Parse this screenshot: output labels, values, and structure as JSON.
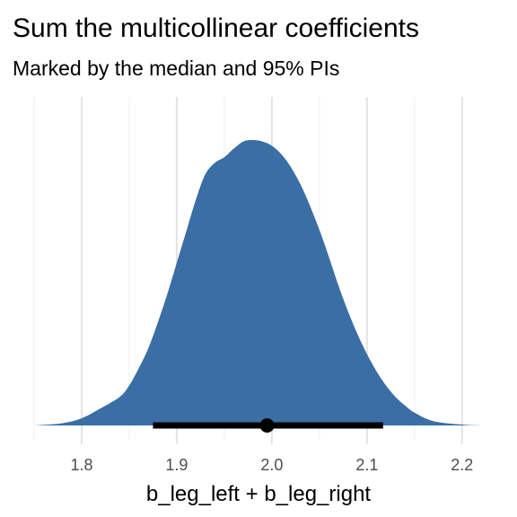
{
  "chart_data": {
    "type": "area",
    "title": "Sum the multicollinear coefficients",
    "subtitle": "Marked by the median and 95% PIs",
    "xlabel": "b_leg_left + b_leg_right",
    "ylabel": "",
    "xlim": [
      1.75,
      2.22
    ],
    "x_ticks": [
      1.8,
      1.9,
      2.0,
      2.1,
      2.2
    ],
    "x_tick_labels": [
      "1.8",
      "1.9",
      "2.0",
      "2.1",
      "2.2"
    ],
    "grid": "vertical",
    "density": {
      "x": [
        1.75,
        1.78,
        1.8,
        1.82,
        1.84,
        1.85,
        1.86,
        1.87,
        1.88,
        1.89,
        1.9,
        1.91,
        1.92,
        1.93,
        1.94,
        1.95,
        1.96,
        1.97,
        1.98,
        1.99,
        2.0,
        2.01,
        2.02,
        2.03,
        2.04,
        2.05,
        2.06,
        2.07,
        2.08,
        2.09,
        2.1,
        2.11,
        2.12,
        2.13,
        2.14,
        2.15,
        2.17,
        2.2,
        2.22
      ],
      "y": [
        0.0,
        0.008,
        0.025,
        0.06,
        0.1,
        0.14,
        0.2,
        0.27,
        0.36,
        0.46,
        0.57,
        0.68,
        0.79,
        0.88,
        0.92,
        0.94,
        0.97,
        0.995,
        1.0,
        0.995,
        0.98,
        0.95,
        0.905,
        0.845,
        0.77,
        0.685,
        0.59,
        0.49,
        0.4,
        0.32,
        0.25,
        0.19,
        0.14,
        0.1,
        0.07,
        0.045,
        0.015,
        0.003,
        0.0
      ]
    },
    "fill_color": "#3a6ea5",
    "point_interval": {
      "median": 1.995,
      "lower": 1.875,
      "upper": 2.117,
      "color": "#000000"
    }
  }
}
